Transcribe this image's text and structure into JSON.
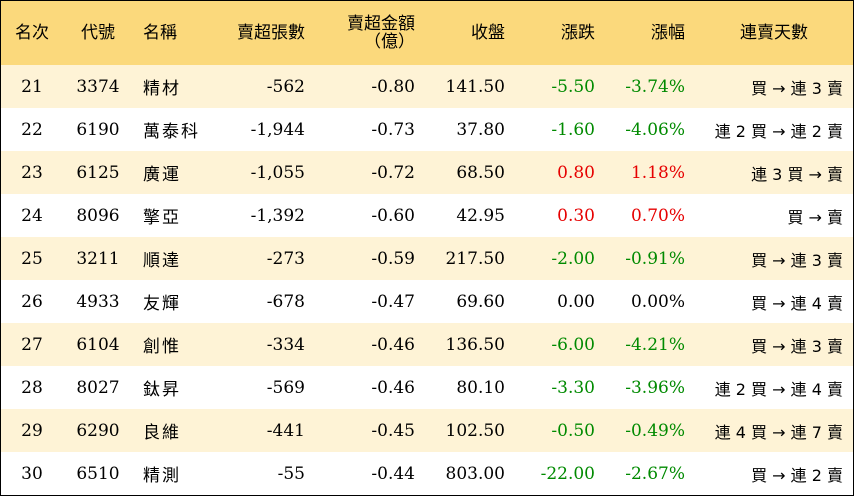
{
  "headers": {
    "rank": "名次",
    "code": "代號",
    "name": "名稱",
    "net_sell_lots": "賣超張數",
    "net_sell_amount_line1": "賣超金額",
    "net_sell_amount_line2": "（億）",
    "close": "收盤",
    "change": "漲跌",
    "change_pct": "漲幅",
    "streak": "連賣天數"
  },
  "colors": {
    "header_bg": "#fbd97c",
    "row_alt_bg": "#fef3d6",
    "up": "#e60000",
    "down": "#008a00"
  },
  "rows": [
    {
      "rank": "21",
      "code": "3374",
      "name": "精材",
      "lots": "-562",
      "amount": "-0.80",
      "close": "141.50",
      "change": "-5.50",
      "pct": "-3.74%",
      "streak": "買 → 連 3 賣",
      "dir": "down"
    },
    {
      "rank": "22",
      "code": "6190",
      "name": "萬泰科",
      "lots": "-1,944",
      "amount": "-0.73",
      "close": "37.80",
      "change": "-1.60",
      "pct": "-4.06%",
      "streak": "連 2 買 → 連 2 賣",
      "dir": "down"
    },
    {
      "rank": "23",
      "code": "6125",
      "name": "廣運",
      "lots": "-1,055",
      "amount": "-0.72",
      "close": "68.50",
      "change": "0.80",
      "pct": "1.18%",
      "streak": "連 3 買 → 賣",
      "dir": "up"
    },
    {
      "rank": "24",
      "code": "8096",
      "name": "擎亞",
      "lots": "-1,392",
      "amount": "-0.60",
      "close": "42.95",
      "change": "0.30",
      "pct": "0.70%",
      "streak": "買 → 賣",
      "dir": "up"
    },
    {
      "rank": "25",
      "code": "3211",
      "name": "順達",
      "lots": "-273",
      "amount": "-0.59",
      "close": "217.50",
      "change": "-2.00",
      "pct": "-0.91%",
      "streak": "買 → 連 3 賣",
      "dir": "down"
    },
    {
      "rank": "26",
      "code": "4933",
      "name": "友輝",
      "lots": "-678",
      "amount": "-0.47",
      "close": "69.60",
      "change": "0.00",
      "pct": "0.00%",
      "streak": "買 → 連 4 賣",
      "dir": "flat"
    },
    {
      "rank": "27",
      "code": "6104",
      "name": "創惟",
      "lots": "-334",
      "amount": "-0.46",
      "close": "136.50",
      "change": "-6.00",
      "pct": "-4.21%",
      "streak": "買 → 連 3 賣",
      "dir": "down"
    },
    {
      "rank": "28",
      "code": "8027",
      "name": "鈦昇",
      "lots": "-569",
      "amount": "-0.46",
      "close": "80.10",
      "change": "-3.30",
      "pct": "-3.96%",
      "streak": "連 2 買 → 連 4 賣",
      "dir": "down"
    },
    {
      "rank": "29",
      "code": "6290",
      "name": "良維",
      "lots": "-441",
      "amount": "-0.45",
      "close": "102.50",
      "change": "-0.50",
      "pct": "-0.49%",
      "streak": "連 4 買 → 連 7 賣",
      "dir": "down"
    },
    {
      "rank": "30",
      "code": "6510",
      "name": "精測",
      "lots": "-55",
      "amount": "-0.44",
      "close": "803.00",
      "change": "-22.00",
      "pct": "-2.67%",
      "streak": "買 → 連 2 賣",
      "dir": "down"
    }
  ]
}
